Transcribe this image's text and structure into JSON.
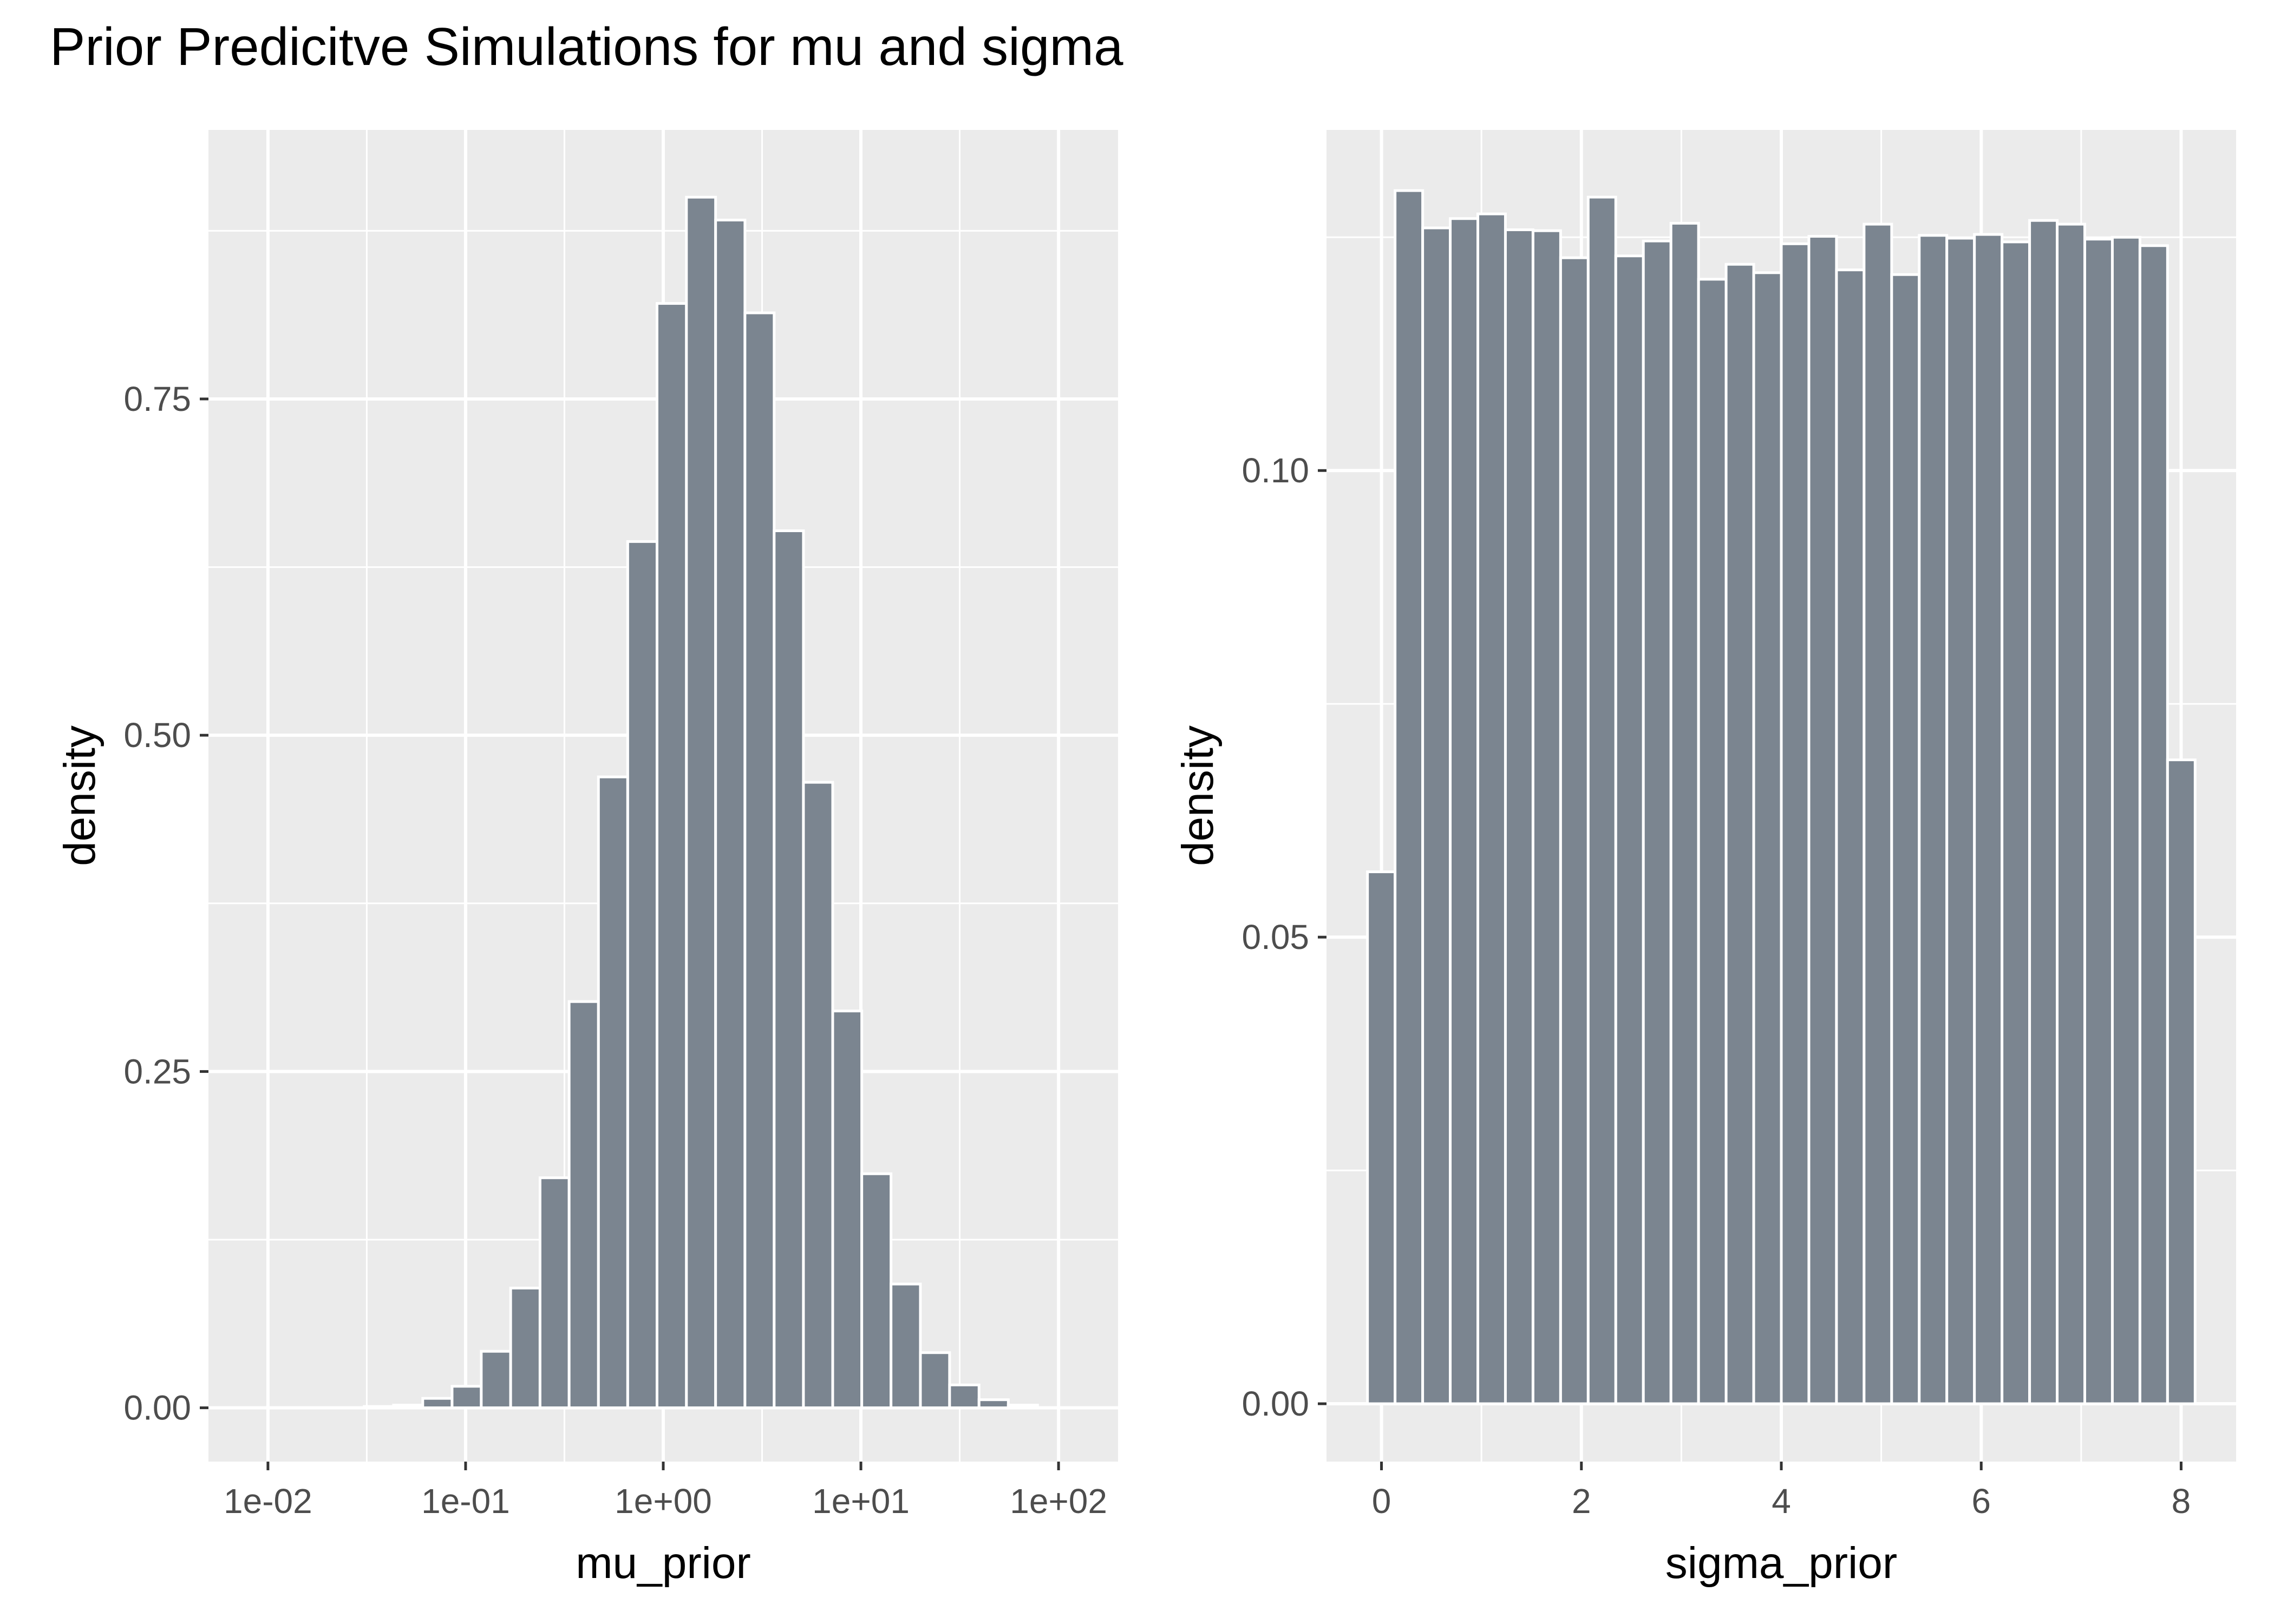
{
  "title": "Prior Predicitve Simulations for mu and sigma",
  "colors": {
    "panel_bg": "#ebebeb",
    "grid": "#ffffff",
    "bar_fill": "#7b8590",
    "bar_outline": "#ffffff",
    "tick_text": "#4d4d4d",
    "axis_title": "#000000"
  },
  "chart_data": [
    {
      "type": "bar",
      "xlabel": "mu_prior",
      "ylabel": "density",
      "x_scale": "log10",
      "xlim": [
        0.005,
        200
      ],
      "ylim": [
        -0.04,
        0.95
      ],
      "grid": true,
      "x_ticks": [
        {
          "value": 0.01,
          "label": "1e-02"
        },
        {
          "value": 0.1,
          "label": "1e-01"
        },
        {
          "value": 1,
          "label": "1e+00"
        },
        {
          "value": 10,
          "label": "1e+01"
        },
        {
          "value": 100,
          "label": "1e+02"
        }
      ],
      "y_ticks": [
        {
          "value": 0,
          "label": "0.00"
        },
        {
          "value": 0.25,
          "label": "0.25"
        },
        {
          "value": 0.5,
          "label": "0.50"
        },
        {
          "value": 0.75,
          "label": "0.75"
        }
      ],
      "bins": [
        {
          "x0": 0.0056,
          "x1": 0.0078,
          "value": 0.0
        },
        {
          "x0": 0.0078,
          "x1": 0.011,
          "value": 0.0
        },
        {
          "x0": 0.011,
          "x1": 0.0155,
          "value": 0.0
        },
        {
          "x0": 0.0155,
          "x1": 0.0218,
          "value": 0.0
        },
        {
          "x0": 0.0218,
          "x1": 0.0307,
          "value": 0.0
        },
        {
          "x0": 0.0307,
          "x1": 0.0432,
          "value": 0.001
        },
        {
          "x0": 0.0432,
          "x1": 0.0607,
          "value": 0.002
        },
        {
          "x0": 0.0607,
          "x1": 0.0854,
          "value": 0.007
        },
        {
          "x0": 0.0854,
          "x1": 0.12,
          "value": 0.016
        },
        {
          "x0": 0.12,
          "x1": 0.169,
          "value": 0.042
        },
        {
          "x0": 0.169,
          "x1": 0.238,
          "value": 0.089
        },
        {
          "x0": 0.238,
          "x1": 0.334,
          "value": 0.171
        },
        {
          "x0": 0.334,
          "x1": 0.47,
          "value": 0.302
        },
        {
          "x0": 0.47,
          "x1": 0.661,
          "value": 0.469
        },
        {
          "x0": 0.661,
          "x1": 0.93,
          "value": 0.644
        },
        {
          "x0": 0.93,
          "x1": 1.31,
          "value": 0.821
        },
        {
          "x0": 1.31,
          "x1": 1.84,
          "value": 0.9
        },
        {
          "x0": 1.84,
          "x1": 2.59,
          "value": 0.883
        },
        {
          "x0": 2.59,
          "x1": 3.64,
          "value": 0.814
        },
        {
          "x0": 3.64,
          "x1": 5.12,
          "value": 0.652
        },
        {
          "x0": 5.12,
          "x1": 7.2,
          "value": 0.465
        },
        {
          "x0": 7.2,
          "x1": 10.1,
          "value": 0.295
        },
        {
          "x0": 10.1,
          "x1": 14.2,
          "value": 0.174
        },
        {
          "x0": 14.2,
          "x1": 20.0,
          "value": 0.092
        },
        {
          "x0": 20.0,
          "x1": 28.1,
          "value": 0.041
        },
        {
          "x0": 28.1,
          "x1": 39.6,
          "value": 0.017
        },
        {
          "x0": 39.6,
          "x1": 55.7,
          "value": 0.006
        },
        {
          "x0": 55.7,
          "x1": 78.3,
          "value": 0.002
        },
        {
          "x0": 78.3,
          "x1": 110.0,
          "value": 0.0
        },
        {
          "x0": 110.0,
          "x1": 155.0,
          "value": 0.0
        }
      ]
    },
    {
      "type": "bar",
      "xlabel": "sigma_prior",
      "ylabel": "density",
      "x_scale": "linear",
      "xlim": [
        -0.55,
        8.55
      ],
      "ylim": [
        -0.0062,
        0.1365
      ],
      "grid": true,
      "x_ticks": [
        {
          "value": 0,
          "label": "0"
        },
        {
          "value": 2,
          "label": "2"
        },
        {
          "value": 4,
          "label": "4"
        },
        {
          "value": 6,
          "label": "6"
        },
        {
          "value": 8,
          "label": "8"
        }
      ],
      "y_ticks": [
        {
          "value": 0,
          "label": "0.00"
        },
        {
          "value": 0.05,
          "label": "0.05"
        },
        {
          "value": 0.1,
          "label": "0.10"
        }
      ],
      "bins": [
        {
          "x0": -0.14,
          "x1": 0.136,
          "value": 0.057
        },
        {
          "x0": 0.136,
          "x1": 0.412,
          "value": 0.13
        },
        {
          "x0": 0.412,
          "x1": 0.688,
          "value": 0.126
        },
        {
          "x0": 0.688,
          "x1": 0.964,
          "value": 0.127
        },
        {
          "x0": 0.964,
          "x1": 1.24,
          "value": 0.1275
        },
        {
          "x0": 1.24,
          "x1": 1.516,
          "value": 0.1258
        },
        {
          "x0": 1.516,
          "x1": 1.792,
          "value": 0.1257
        },
        {
          "x0": 1.792,
          "x1": 2.068,
          "value": 0.1228
        },
        {
          "x0": 2.068,
          "x1": 2.344,
          "value": 0.1293
        },
        {
          "x0": 2.344,
          "x1": 2.62,
          "value": 0.123
        },
        {
          "x0": 2.62,
          "x1": 2.896,
          "value": 0.1246
        },
        {
          "x0": 2.896,
          "x1": 3.172,
          "value": 0.1265
        },
        {
          "x0": 3.172,
          "x1": 3.448,
          "value": 0.1205
        },
        {
          "x0": 3.448,
          "x1": 3.724,
          "value": 0.1221
        },
        {
          "x0": 3.724,
          "x1": 4.0,
          "value": 0.1212
        },
        {
          "x0": 4.0,
          "x1": 4.276,
          "value": 0.1243
        },
        {
          "x0": 4.276,
          "x1": 4.552,
          "value": 0.1251
        },
        {
          "x0": 4.552,
          "x1": 4.828,
          "value": 0.1215
        },
        {
          "x0": 4.828,
          "x1": 5.104,
          "value": 0.1264
        },
        {
          "x0": 5.104,
          "x1": 5.38,
          "value": 0.121
        },
        {
          "x0": 5.38,
          "x1": 5.656,
          "value": 0.1252
        },
        {
          "x0": 5.656,
          "x1": 5.932,
          "value": 0.1249
        },
        {
          "x0": 5.932,
          "x1": 6.208,
          "value": 0.1253
        },
        {
          "x0": 6.208,
          "x1": 6.484,
          "value": 0.1245
        },
        {
          "x0": 6.484,
          "x1": 6.76,
          "value": 0.1268
        },
        {
          "x0": 6.76,
          "x1": 7.036,
          "value": 0.1264
        },
        {
          "x0": 7.036,
          "x1": 7.312,
          "value": 0.1248
        },
        {
          "x0": 7.312,
          "x1": 7.588,
          "value": 0.125
        },
        {
          "x0": 7.588,
          "x1": 7.864,
          "value": 0.1241
        },
        {
          "x0": 7.864,
          "x1": 8.14,
          "value": 0.069
        }
      ]
    }
  ]
}
